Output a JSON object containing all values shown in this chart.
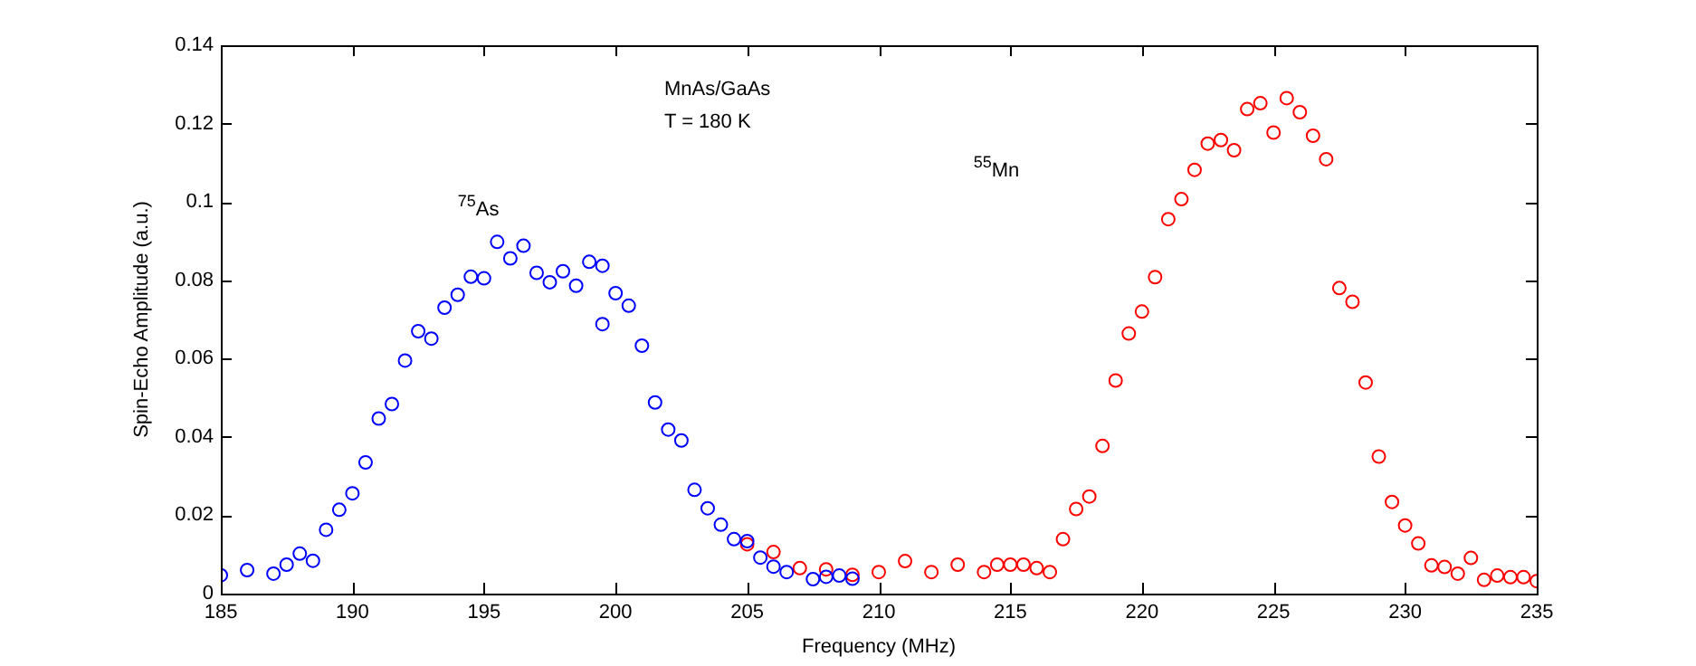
{
  "chart_data": {
    "type": "scatter",
    "xlabel": "Frequency (MHz)",
    "ylabel": "Spin-Echo Amplitude (a.u.)",
    "xlim": [
      185,
      235
    ],
    "xticks": [
      185,
      190,
      195,
      200,
      205,
      210,
      215,
      220,
      225,
      230,
      235
    ],
    "ylim": [
      0,
      0.14
    ],
    "yticks": [
      0,
      0.02,
      0.04,
      0.06,
      0.08,
      0.1,
      0.12,
      0.14
    ],
    "grid": false,
    "legend": false,
    "marker": "circle",
    "annotations": [
      "MnAs/GaAs",
      "T = 180 K",
      "$^{75}$As",
      "$^{55}$Mn"
    ],
    "series": [
      {
        "color": "#0000ff",
        "x": [
          185,
          186,
          187,
          187.5,
          188,
          188.5,
          189,
          189.5,
          190,
          190.5,
          191,
          191.5,
          192,
          192.5,
          193,
          193.5,
          194,
          194.5,
          195,
          195.5,
          196,
          196.5,
          197,
          197.5,
          198,
          198.5,
          199,
          199.5,
          199.5,
          200,
          200.5,
          201,
          201.5,
          202,
          202.5,
          203,
          203.5,
          204,
          204.5,
          205,
          205.5,
          206,
          206.5,
          207.5,
          208,
          208.5,
          209
        ],
        "values": [
          0.0047,
          0.006,
          0.0051,
          0.0074,
          0.0102,
          0.0084,
          0.0163,
          0.0214,
          0.0256,
          0.0335,
          0.0447,
          0.0484,
          0.0595,
          0.067,
          0.0651,
          0.073,
          0.0763,
          0.0809,
          0.0805,
          0.0898,
          0.0856,
          0.0888,
          0.0819,
          0.0795,
          0.0823,
          0.0786,
          0.0847,
          0.0837,
          0.0688,
          0.0767,
          0.0735,
          0.0633,
          0.0488,
          0.0419,
          0.0391,
          0.0265,
          0.0218,
          0.0176,
          0.0139,
          0.0134,
          0.0092,
          0.0069,
          0.0055,
          0.0037,
          0.0043,
          0.0046,
          0.0038
        ]
      },
      {
        "color": "#ff0000",
        "x": [
          205,
          206,
          207,
          208,
          209,
          210,
          211,
          212,
          213,
          214,
          214.5,
          215,
          215.5,
          216,
          216.5,
          217,
          217.5,
          218,
          218.5,
          219,
          219.5,
          220,
          220.5,
          221,
          221.5,
          222,
          222.5,
          223,
          223.5,
          224,
          224.5,
          225,
          225.5,
          226,
          226.5,
          227,
          227.5,
          228,
          228.5,
          229,
          229.5,
          230,
          230.5,
          231,
          231.5,
          232,
          232.5,
          233,
          233.5,
          234,
          234.5,
          235
        ],
        "values": [
          0.0126,
          0.0106,
          0.0065,
          0.0062,
          0.0048,
          0.0055,
          0.0083,
          0.0055,
          0.0074,
          0.0055,
          0.0074,
          0.0074,
          0.0074,
          0.0065,
          0.0055,
          0.0139,
          0.0216,
          0.0248,
          0.0377,
          0.0544,
          0.0664,
          0.072,
          0.0808,
          0.0956,
          0.1007,
          0.1082,
          0.1149,
          0.1158,
          0.1132,
          0.1237,
          0.1252,
          0.1177,
          0.1265,
          0.1229,
          0.1169,
          0.1109,
          0.078,
          0.0745,
          0.0539,
          0.035,
          0.0234,
          0.0174,
          0.0128,
          0.0072,
          0.0068,
          0.0051,
          0.0091,
          0.0035,
          0.0046,
          0.0042,
          0.0042,
          0.0032
        ]
      }
    ]
  }
}
